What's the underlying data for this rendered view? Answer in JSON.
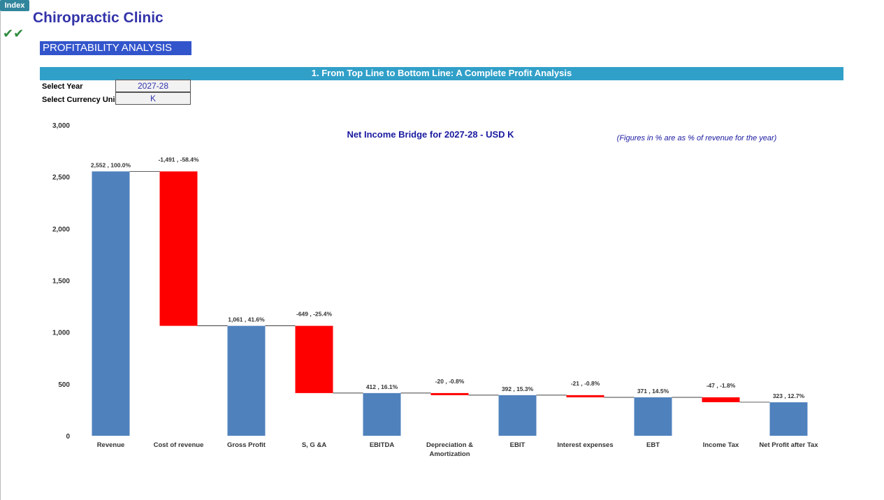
{
  "index_button": "Index",
  "header": {
    "title": "Chiropractic Clinic",
    "section": "PROFITABILITY ANALYSIS",
    "banner": "1. From Top Line to Bottom Line: A Complete Profit Analysis"
  },
  "inputs": [
    {
      "label": "Select Year",
      "value": "2027-28"
    },
    {
      "label": "Select Currency Uni",
      "value": "K"
    }
  ],
  "chart_data": {
    "type": "waterfall",
    "title": "Net Income Bridge for 2027-28 - USD K",
    "note": "(Figures in % are as % of revenue for the year)",
    "categories": [
      "Revenue",
      "Cost of revenue",
      "Gross Profit",
      "S, G &A",
      "EBITDA",
      "Depreciation & Amortization",
      "EBIT",
      "Interest expenses",
      "EBT",
      "Income Tax",
      "Net Profit after Tax"
    ],
    "values": [
      2552,
      -1491,
      1061,
      -649,
      412,
      -20,
      392,
      -21,
      371,
      -47,
      323
    ],
    "value_labels": [
      "2,552 , 100.0%",
      "-1,491 , -58.4%",
      "1,061 , 41.6%",
      "-649 , -25.4%",
      "412 , 16.1%",
      "-20 , -0.8%",
      "392 , 15.3%",
      "-21 , -0.8%",
      "371 , 14.5%",
      "-47 , -1.8%",
      "323 , 12.7%"
    ],
    "color": "#4f81bd",
    "negative_color": "#ff0000",
    "ylim": [
      0,
      3000
    ],
    "yticks": [
      0,
      500,
      {
        "value": 1000,
        "label": "1,000"
      },
      {
        "value": 1500,
        "label": "1,500"
      },
      {
        "value": 2000,
        "label": "2,000"
      },
      {
        "value": 2500,
        "label": "2,500"
      },
      {
        "value": 3000,
        "label": "3,000"
      }
    ],
    "grid": false
  }
}
